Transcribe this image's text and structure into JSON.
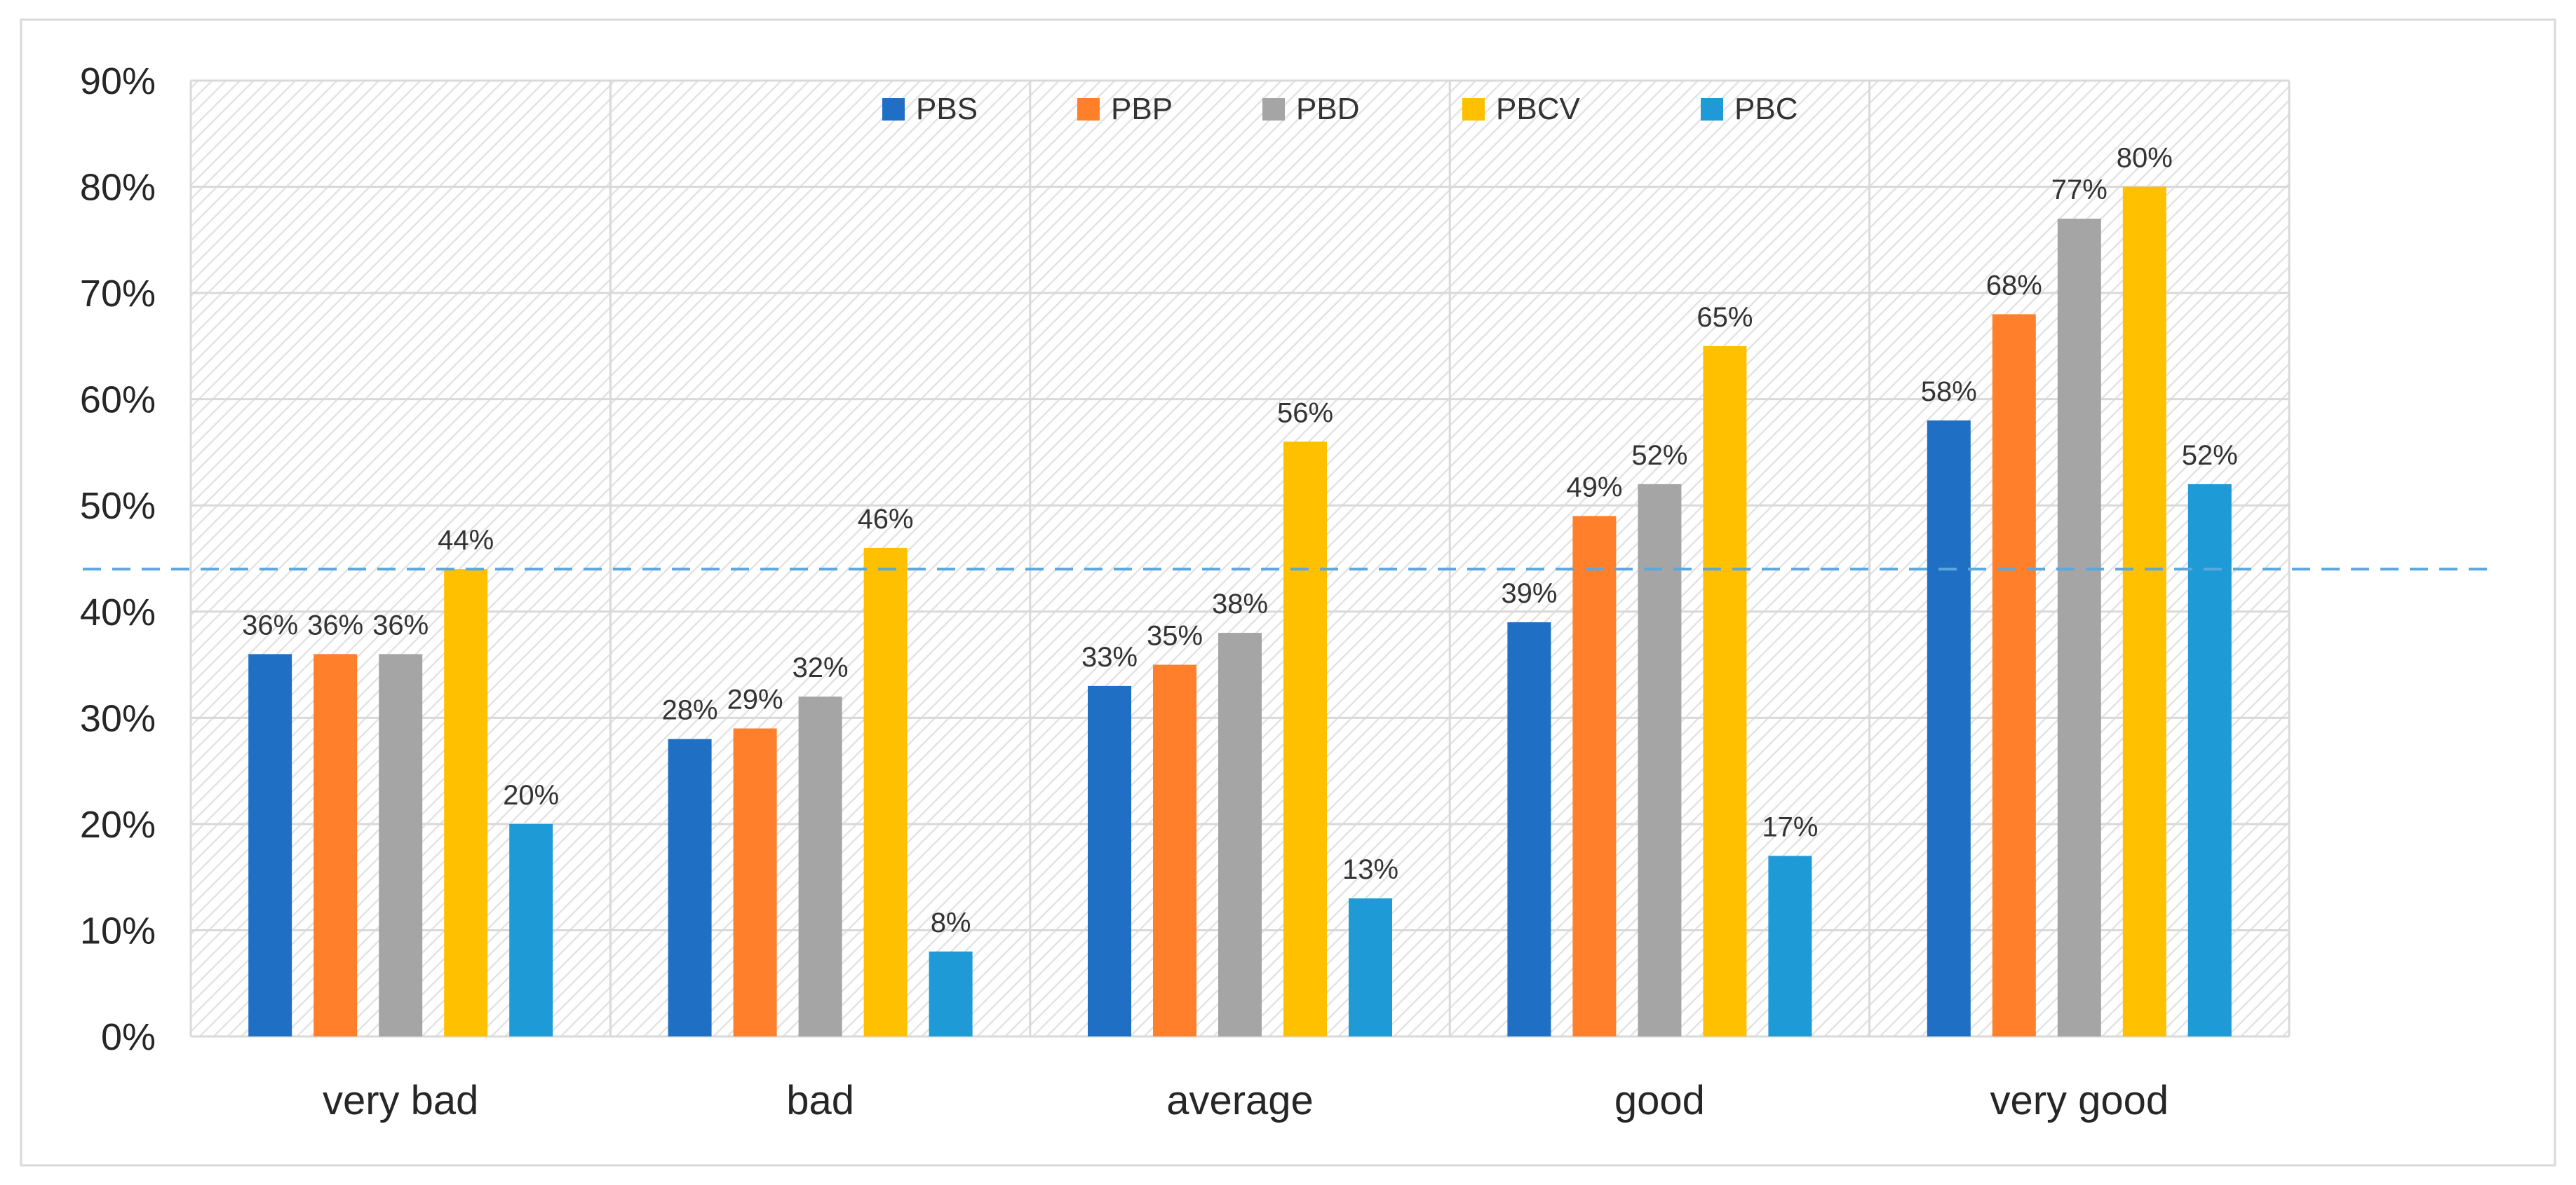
{
  "chart_data": {
    "type": "bar",
    "title": "",
    "xlabel": "",
    "ylabel": "",
    "ylim": [
      0,
      90
    ],
    "y_tick_step": 10,
    "y_tick_format": "percent",
    "grid": true,
    "legend_placement": "top-center",
    "categories": [
      "very bad",
      "bad",
      "average",
      "good",
      "very good"
    ],
    "series": [
      {
        "name": "PBS",
        "color": "#1F6FC5",
        "values": [
          36,
          28,
          33,
          39,
          58
        ]
      },
      {
        "name": "PBP",
        "color": "#FF7F2A",
        "values": [
          36,
          29,
          35,
          49,
          68
        ]
      },
      {
        "name": "PBD",
        "color": "#A5A5A5",
        "values": [
          36,
          32,
          38,
          52,
          77
        ]
      },
      {
        "name": "PBCV",
        "color": "#FFC000",
        "values": [
          44,
          46,
          56,
          65,
          80
        ]
      },
      {
        "name": "PBC",
        "color": "#1E9AD6",
        "values": [
          20,
          8,
          13,
          17,
          52
        ]
      }
    ],
    "data_label_format": "percent",
    "reference_line": {
      "value": 44,
      "style": "dashed",
      "color": "#5BA8DC"
    }
  }
}
